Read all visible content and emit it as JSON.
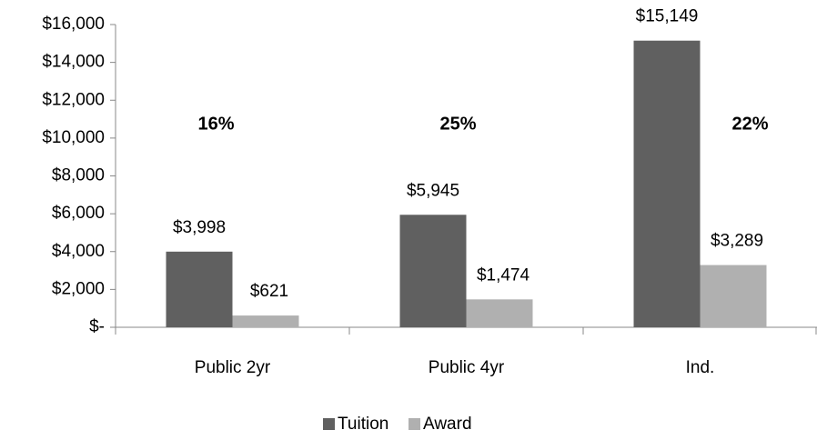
{
  "chart_data": {
    "type": "bar",
    "categories": [
      "Public 2yr",
      "Public 4yr",
      "Ind."
    ],
    "series": [
      {
        "name": "Tuition",
        "color": "#606060",
        "values": [
          3998,
          5945,
          15149
        ],
        "value_labels": [
          "$3,998",
          "$5,945",
          "$15,149"
        ]
      },
      {
        "name": "Award",
        "color": "#b0b0b0",
        "values": [
          621,
          1474,
          3289
        ],
        "value_labels": [
          "$621",
          "$1,474",
          "$3,289"
        ]
      }
    ],
    "annotations": [
      "16%",
      "25%",
      "22%"
    ],
    "ylim": [
      0,
      16000
    ],
    "yticks": [
      {
        "value": 0,
        "label": "$-"
      },
      {
        "value": 2000,
        "label": "$2,000"
      },
      {
        "value": 4000,
        "label": "$4,000"
      },
      {
        "value": 6000,
        "label": "$6,000"
      },
      {
        "value": 8000,
        "label": "$8,000"
      },
      {
        "value": 10000,
        "label": "$10,000"
      },
      {
        "value": 12000,
        "label": "$12,000"
      },
      {
        "value": 14000,
        "label": "$14,000"
      },
      {
        "value": 16000,
        "label": "$16,000"
      }
    ],
    "grid": false,
    "legend": "bottom"
  }
}
